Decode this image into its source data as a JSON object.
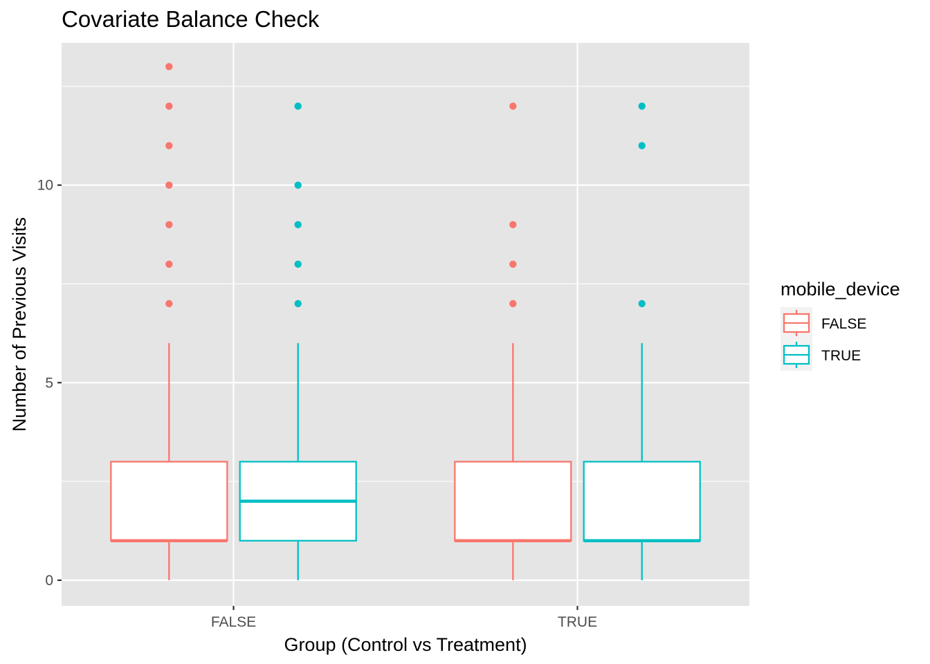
{
  "chart_data": {
    "type": "box",
    "title": "Covariate Balance Check",
    "xlabel": "Group (Control vs Treatment)",
    "ylabel": "Number of Previous Visits",
    "categories": [
      "FALSE",
      "TRUE"
    ],
    "y_ticks": [
      0,
      5,
      10
    ],
    "y_tick_labels": [
      "0",
      "5",
      "10"
    ],
    "ylim": [
      -0.65,
      13.6
    ],
    "grid": true,
    "legend": {
      "title": "mobile_device",
      "position": "right",
      "entries": [
        "FALSE",
        "TRUE"
      ]
    },
    "colors": {
      "FALSE": "#F8766D",
      "TRUE": "#00BFC4",
      "panel": "#E5E5E5",
      "grid": "#FFFFFF"
    },
    "series": [
      {
        "name": "FALSE",
        "boxes": [
          {
            "category": "FALSE",
            "min": 0,
            "q1": 1,
            "median": 1,
            "q3": 3,
            "max": 6,
            "outliers": [
              7,
              8,
              9,
              10,
              11,
              12,
              13
            ]
          },
          {
            "category": "TRUE",
            "min": 0,
            "q1": 1,
            "median": 1,
            "q3": 3,
            "max": 6,
            "outliers": [
              7,
              8,
              9,
              12
            ]
          }
        ]
      },
      {
        "name": "TRUE",
        "boxes": [
          {
            "category": "FALSE",
            "min": 0,
            "q1": 1,
            "median": 2,
            "q3": 3,
            "max": 6,
            "outliers": [
              7,
              8,
              9,
              10,
              12
            ]
          },
          {
            "category": "TRUE",
            "min": 0,
            "q1": 1,
            "median": 1,
            "q3": 3,
            "max": 6,
            "outliers": [
              7,
              11,
              12
            ]
          }
        ]
      }
    ]
  }
}
